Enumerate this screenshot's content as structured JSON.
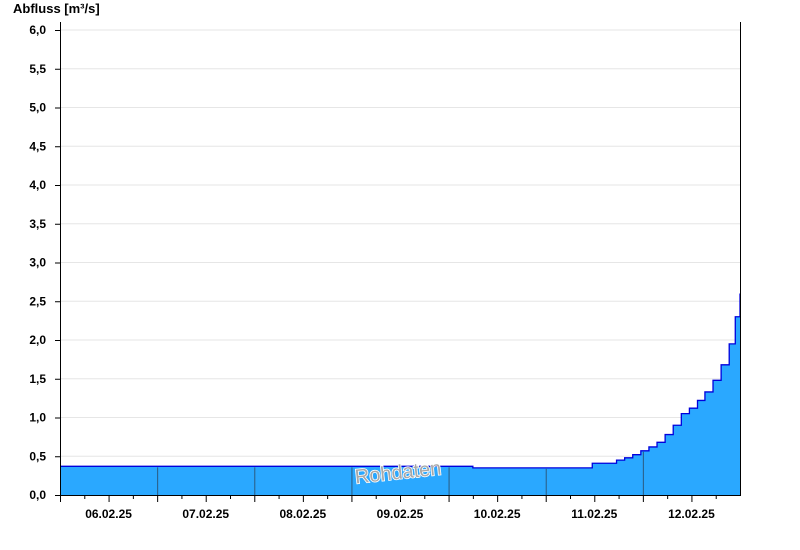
{
  "chart_data": {
    "type": "area",
    "ylabel": "Abfluss [m³/s]",
    "ylim": [
      0,
      6.0
    ],
    "yticks": [
      "0,0",
      "0,5",
      "1,0",
      "1,5",
      "2,0",
      "2,5",
      "3,0",
      "3,5",
      "4,0",
      "4,5",
      "5,0",
      "5,5",
      "6,0"
    ],
    "xlim": [
      "06.02.25 00:00",
      "13.02.25 00:00"
    ],
    "xtick_labels": [
      "06.02.25",
      "07.02.25",
      "08.02.25",
      "09.02.25",
      "10.02.25",
      "11.02.25",
      "12.02.25"
    ],
    "grid": true,
    "step": true,
    "watermark": "Rohdaten",
    "colors": {
      "fill": "#2aa8ff",
      "line": "#0000dd",
      "grid": "#e6e6e6"
    },
    "series": [
      {
        "x": [
          "06.02.25 00:00",
          "10.02.25 06:00",
          "11.02.25 11:30",
          "11.02.25 17:30",
          "11.02.25 19:30",
          "11.02.25 21:30",
          "11.02.25 23:30",
          "12.02.25 01:30",
          "12.02.25 03:30",
          "12.02.25 05:30",
          "12.02.25 07:30",
          "12.02.25 09:30",
          "12.02.25 11:30",
          "12.02.25 13:30",
          "12.02.25 15:20",
          "12.02.25 17:20",
          "12.02.25 19:20",
          "12.02.25 21:20",
          "12.02.25 22:50",
          "13.02.25 00:00"
        ],
        "values": [
          0.37,
          0.35,
          0.41,
          0.45,
          0.48,
          0.52,
          0.57,
          0.62,
          0.68,
          0.78,
          0.9,
          1.05,
          1.12,
          1.22,
          1.33,
          1.48,
          1.68,
          1.95,
          2.3,
          2.6
        ]
      }
    ]
  }
}
